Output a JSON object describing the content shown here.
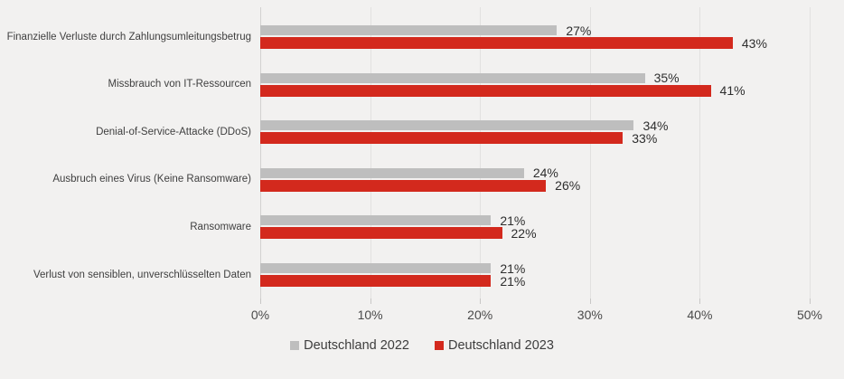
{
  "chart_data": {
    "type": "bar",
    "orientation": "horizontal",
    "title": "",
    "categories": [
      "Finanzielle Verluste durch Zahlungsumleitungsbetrug",
      "Missbrauch von IT-Ressourcen",
      "Denial-of-Service-Attacke (DDoS)",
      "Ausbruch eines Virus (Keine Ransomware)",
      "Ransomware",
      "Verlust von sensiblen, unverschlüsselten Daten"
    ],
    "series": [
      {
        "name": "Deutschland 2022",
        "color": "#bebebe",
        "values": [
          27,
          35,
          34,
          24,
          21,
          21
        ],
        "labels": [
          "27%",
          "35%",
          "34%",
          "24%",
          "21%",
          "21%"
        ]
      },
      {
        "name": "Deutschland 2023",
        "color": "#d3291d",
        "values": [
          43,
          41,
          33,
          26,
          22,
          21
        ],
        "labels": [
          "43%",
          "41%",
          "33%",
          "26%",
          "22%",
          "21%"
        ]
      }
    ],
    "xlim": [
      0,
      50
    ],
    "xtick_values": [
      0,
      10,
      20,
      30,
      40,
      50
    ],
    "xtick_labels": [
      "0%",
      "10%",
      "20%",
      "30%",
      "40%",
      "50%"
    ],
    "grid": true,
    "legend_position": "bottom"
  },
  "colors": {
    "background": "#f2f1f0",
    "bar_2022": "#bebebe",
    "bar_2023": "#d3291d",
    "gridline": "#e2e1e0",
    "axis_line": "#d2d1d0",
    "tick_text": "#4a4a4a",
    "category_text": "#3f3f3f",
    "value_text": "#2e2e2e",
    "legend_text": "#3d3d3d"
  }
}
